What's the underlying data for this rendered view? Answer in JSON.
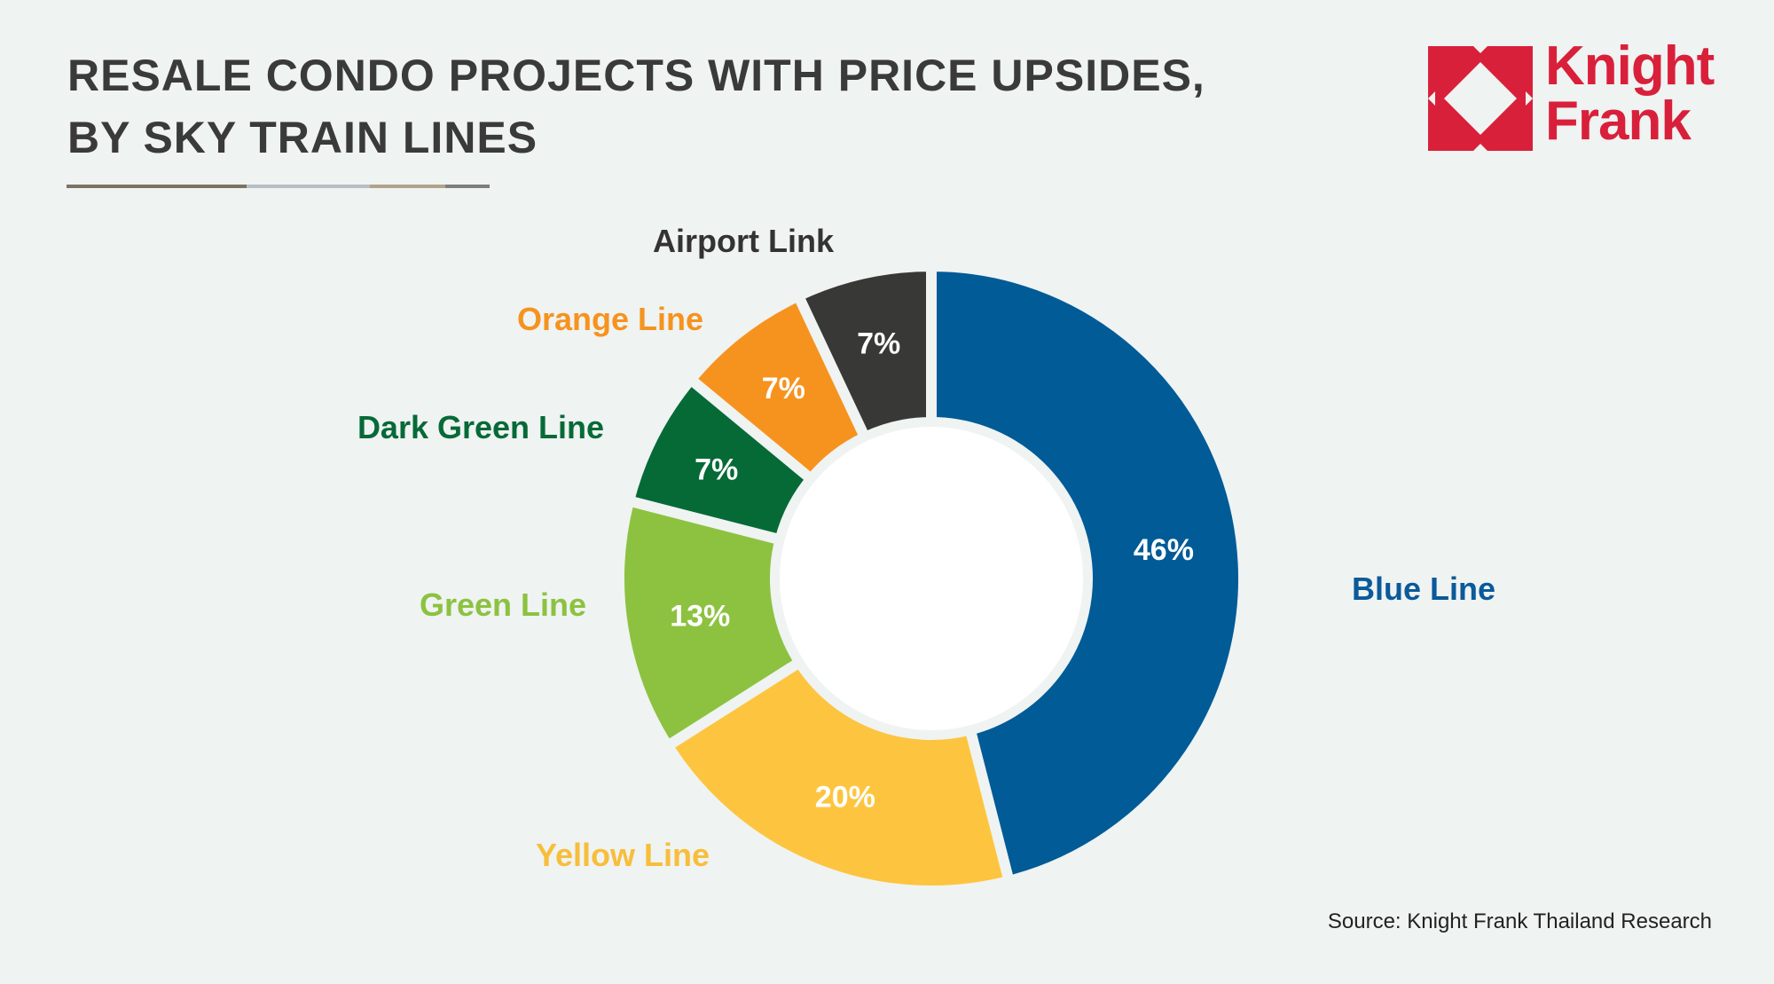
{
  "title_lines": [
    "RESALE CONDO PROJECTS WITH PRICE UPSIDES,",
    "BY SKY TRAIN LINES"
  ],
  "logo": {
    "text_line1": "Knight",
    "text_line2": "Frank",
    "color": "#d9203b"
  },
  "source": "Source: Knight Frank Thailand Research",
  "chart_data": {
    "type": "pie",
    "variant": "donut",
    "title": "RESALE CONDO PROJECTS WITH PRICE UPSIDES, BY SKY TRAIN LINES",
    "unit": "%",
    "start": "12 o'clock, clockwise",
    "slices": [
      {
        "name": "Blue Line",
        "value": 46,
        "label": "46%",
        "color": "#005b97"
      },
      {
        "name": "Yellow Line",
        "value": 20,
        "label": "20%",
        "color": "#fdc53f"
      },
      {
        "name": "Green Line",
        "value": 13,
        "label": "13%",
        "color": "#8cc240"
      },
      {
        "name": "Dark Green Line",
        "value": 7,
        "label": "7%",
        "color": "#066a37"
      },
      {
        "name": "Orange Line",
        "value": 7,
        "label": "7%",
        "color": "#f6931e"
      },
      {
        "name": "Airport Link",
        "value": 7,
        "label": "7%",
        "color": "#383836"
      }
    ]
  }
}
